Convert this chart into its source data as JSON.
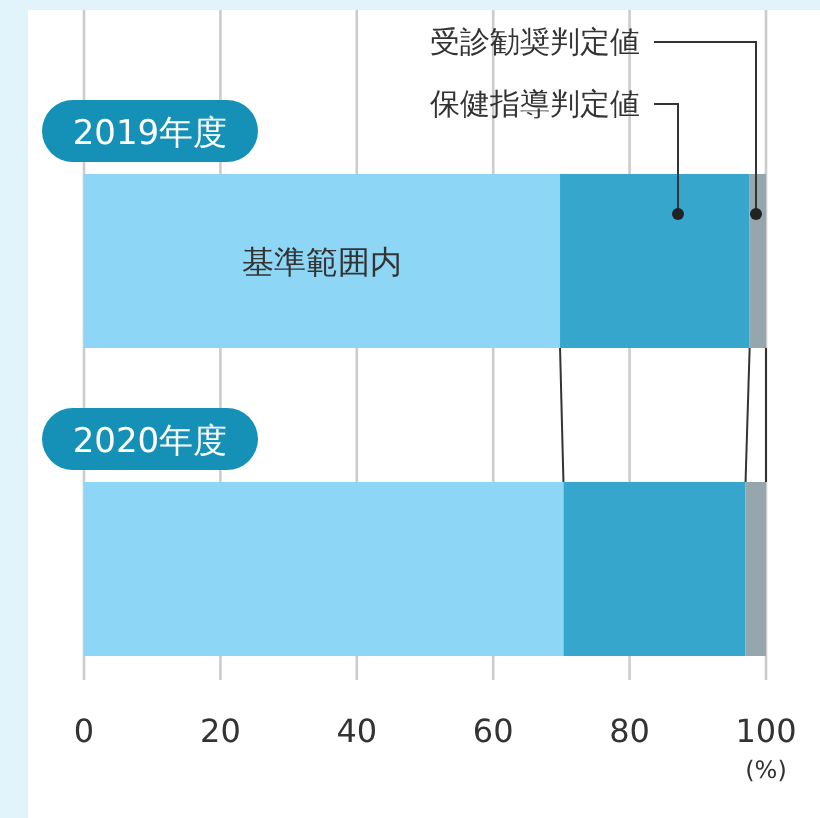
{
  "chart_data": {
    "type": "bar",
    "orientation": "horizontal",
    "stacked": true,
    "categories": [
      "2019年度",
      "2020年度"
    ],
    "series": [
      {
        "name": "基準範囲内",
        "color": "#8dd6f5",
        "values": [
          69.8,
          70.3
        ]
      },
      {
        "name": "保健指導判定値",
        "color": "#36a6cc",
        "values": [
          27.8,
          26.7
        ]
      },
      {
        "name": "受診勧奨判定値",
        "color": "#96a6ad",
        "values": [
          2.4,
          3.0
        ]
      }
    ],
    "xlim": [
      0,
      100
    ],
    "xticks": [
      0,
      20,
      40,
      60,
      80,
      100
    ],
    "xlabel": "(%)",
    "grid": "x"
  }
}
